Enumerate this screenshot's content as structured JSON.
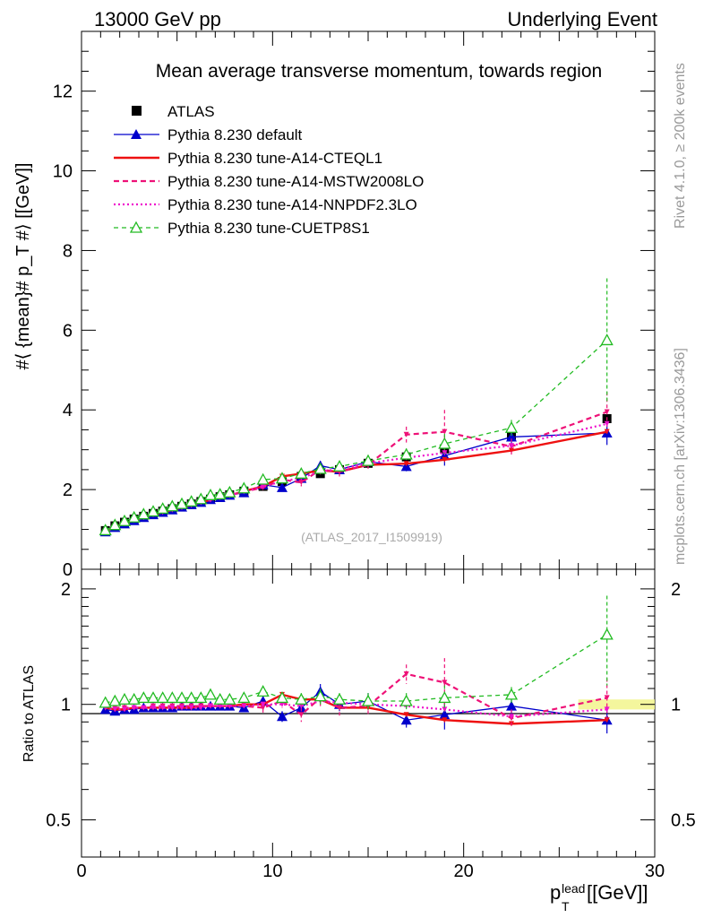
{
  "header": {
    "left_title": "13000 GeV pp",
    "right_title": "Underlying Event",
    "plot_title": "Mean average transverse momentum, towards region",
    "watermark": "(ATLAS_2017_I1509919)",
    "side_top": "Rivet 4.1.0, ≥ 200k events",
    "side_bottom": "mcplots.cern.ch [arXiv:1306.3436]"
  },
  "axes": {
    "ylabel_main": "#⟨ {mean}# p_T #⟩ [[GeV]]",
    "ylabel_ratio": "Ratio to ATLAS",
    "xlabel": "p_T^lead [[GeV]]",
    "xlabel_main": "p",
    "xlabel_sub": "T",
    "xlabel_sup": "lead",
    "xlabel_unit": " [[GeV]]"
  },
  "legend": [
    {
      "label": "ATLAS",
      "color": "#000000"
    },
    {
      "label": "Pythia 8.230 default",
      "color": "#0000cc"
    },
    {
      "label": "Pythia 8.230 tune-A14-CTEQL1",
      "color": "#ee1111"
    },
    {
      "label": "Pythia 8.230 tune-A14-MSTW2008LO",
      "color": "#ee1177"
    },
    {
      "label": "Pythia 8.230 tune-A14-NNPDF2.3LO",
      "color": "#ee11cc"
    },
    {
      "label": "Pythia 8.230 tune-CUETP8S1",
      "color": "#22bb22"
    }
  ],
  "chart_data": [
    {
      "type": "line",
      "title": "Mean average transverse momentum, towards region",
      "xlabel": "p_T^lead [GeV]",
      "ylabel": "<mean p_T> [GeV]",
      "xlim": [
        0,
        30
      ],
      "ylim": [
        0,
        13.5
      ],
      "xticks": [
        0,
        10,
        20,
        30
      ],
      "yticks": [
        0,
        2,
        4,
        6,
        8,
        10,
        12
      ],
      "x": [
        1.25,
        1.75,
        2.25,
        2.75,
        3.25,
        3.75,
        4.25,
        4.75,
        5.25,
        5.75,
        6.25,
        6.75,
        7.25,
        7.75,
        8.5,
        9.5,
        10.5,
        11.5,
        12.5,
        13.5,
        15,
        17,
        19,
        22.5,
        27.5
      ],
      "series": [
        {
          "name": "ATLAS",
          "values": [
            0.97,
            1.09,
            1.18,
            1.26,
            1.33,
            1.4,
            1.46,
            1.52,
            1.58,
            1.64,
            1.7,
            1.76,
            1.82,
            1.87,
            1.96,
            2.08,
            2.2,
            2.33,
            2.4,
            2.5,
            2.66,
            2.82,
            3.02,
            3.35,
            3.78
          ]
        },
        {
          "name": "Pythia 8.230 default",
          "values": [
            0.94,
            1.05,
            1.14,
            1.22,
            1.3,
            1.37,
            1.43,
            1.49,
            1.56,
            1.62,
            1.68,
            1.75,
            1.8,
            1.86,
            1.92,
            2.12,
            2.05,
            2.28,
            2.6,
            2.5,
            2.7,
            2.58,
            2.85,
            3.32,
            3.42
          ]
        },
        {
          "name": "Pythia 8.230 tune-A14-CTEQL1",
          "values": [
            0.95,
            1.06,
            1.15,
            1.23,
            1.3,
            1.37,
            1.43,
            1.49,
            1.55,
            1.61,
            1.68,
            1.74,
            1.8,
            1.85,
            1.96,
            2.08,
            2.33,
            2.4,
            2.48,
            2.45,
            2.62,
            2.65,
            2.75,
            2.98,
            3.45
          ]
        },
        {
          "name": "Pythia 8.230 tune-A14-MSTW2008LO",
          "values": [
            0.96,
            1.07,
            1.16,
            1.24,
            1.31,
            1.38,
            1.44,
            1.5,
            1.56,
            1.62,
            1.68,
            1.75,
            1.81,
            1.86,
            1.95,
            2.05,
            2.25,
            2.18,
            2.5,
            2.45,
            2.62,
            3.38,
            3.45,
            3.08,
            3.95
          ]
        },
        {
          "name": "Pythia 8.230 tune-A14-NNPDF2.3LO",
          "values": [
            0.95,
            1.06,
            1.15,
            1.23,
            1.3,
            1.37,
            1.43,
            1.49,
            1.55,
            1.61,
            1.67,
            1.74,
            1.8,
            1.85,
            1.95,
            2.08,
            2.2,
            2.3,
            2.45,
            2.52,
            2.66,
            2.8,
            2.92,
            3.1,
            3.65
          ]
        },
        {
          "name": "Pythia 8.230 tune-CUETP8S1",
          "values": [
            0.98,
            1.11,
            1.21,
            1.3,
            1.38,
            1.45,
            1.52,
            1.58,
            1.64,
            1.7,
            1.76,
            1.86,
            1.88,
            1.93,
            2.03,
            2.25,
            2.28,
            2.4,
            2.52,
            2.58,
            2.72,
            2.88,
            3.15,
            3.55,
            5.75
          ]
        }
      ],
      "errors": {
        "Pythia 8.230 default": [
          0.02,
          0.02,
          0.02,
          0.02,
          0.02,
          0.02,
          0.02,
          0.02,
          0.02,
          0.02,
          0.02,
          0.03,
          0.03,
          0.03,
          0.05,
          0.08,
          0.08,
          0.1,
          0.12,
          0.1,
          0.15,
          0.12,
          0.25,
          0.2,
          0.3
        ],
        "Pythia 8.230 tune-A14-MSTW2008LO": [
          0.02,
          0.02,
          0.02,
          0.02,
          0.02,
          0.02,
          0.02,
          0.02,
          0.02,
          0.02,
          0.02,
          0.03,
          0.03,
          0.03,
          0.05,
          0.08,
          0.1,
          0.1,
          0.12,
          0.12,
          0.15,
          0.2,
          0.55,
          0.2,
          0.5
        ],
        "Pythia 8.230 tune-CUETP8S1": [
          0.02,
          0.02,
          0.02,
          0.02,
          0.02,
          0.02,
          0.02,
          0.02,
          0.02,
          0.02,
          0.02,
          0.03,
          0.03,
          0.03,
          0.05,
          0.08,
          0.08,
          0.1,
          0.12,
          0.1,
          0.15,
          0.15,
          0.25,
          0.2,
          1.55
        ]
      }
    },
    {
      "type": "line",
      "ylabel": "Ratio to ATLAS",
      "xlim": [
        0,
        30
      ],
      "ylim": [
        0.4,
        2.25
      ],
      "yscale": "log",
      "yticks": [
        0.5,
        1,
        2
      ],
      "x": [
        1.25,
        1.75,
        2.25,
        2.75,
        3.25,
        3.75,
        4.25,
        4.75,
        5.25,
        5.75,
        6.25,
        6.75,
        7.25,
        7.75,
        8.5,
        9.5,
        10.5,
        11.5,
        12.5,
        13.5,
        15,
        17,
        19,
        22.5,
        27.5
      ],
      "series": [
        {
          "name": "Pythia 8.230 default",
          "values": [
            0.97,
            0.96,
            0.97,
            0.97,
            0.98,
            0.98,
            0.98,
            0.98,
            0.99,
            0.99,
            0.99,
            0.99,
            0.99,
            0.99,
            0.98,
            1.02,
            0.93,
            0.98,
            1.08,
            1.0,
            1.02,
            0.91,
            0.94,
            0.99,
            0.91
          ]
        },
        {
          "name": "Pythia 8.230 tune-A14-CTEQL1",
          "values": [
            0.98,
            0.97,
            0.97,
            0.98,
            0.98,
            0.98,
            0.98,
            0.98,
            0.98,
            0.98,
            0.99,
            0.99,
            0.99,
            0.99,
            1.0,
            1.0,
            1.06,
            1.03,
            1.03,
            0.98,
            0.98,
            0.94,
            0.91,
            0.89,
            0.91
          ]
        },
        {
          "name": "Pythia 8.230 tune-A14-MSTW2008LO",
          "values": [
            0.99,
            0.98,
            0.98,
            0.98,
            0.98,
            0.99,
            0.99,
            0.99,
            0.99,
            0.99,
            0.99,
            0.99,
            0.99,
            0.99,
            0.99,
            0.98,
            1.02,
            0.94,
            1.04,
            0.98,
            0.99,
            1.2,
            1.14,
            0.92,
            1.04
          ]
        },
        {
          "name": "Pythia 8.230 tune-A14-NNPDF2.3LO",
          "values": [
            0.98,
            0.97,
            0.97,
            0.98,
            0.98,
            0.98,
            0.98,
            0.98,
            0.98,
            0.98,
            0.98,
            0.99,
            0.99,
            0.99,
            0.99,
            1.0,
            1.0,
            0.99,
            1.02,
            1.01,
            1.0,
            0.99,
            0.97,
            0.93,
            0.97
          ]
        },
        {
          "name": "Pythia 8.230 tune-CUETP8S1",
          "values": [
            1.01,
            1.02,
            1.03,
            1.03,
            1.04,
            1.04,
            1.04,
            1.04,
            1.04,
            1.04,
            1.04,
            1.06,
            1.03,
            1.03,
            1.04,
            1.08,
            1.04,
            1.03,
            1.05,
            1.03,
            1.02,
            1.02,
            1.04,
            1.06,
            1.52
          ]
        }
      ],
      "errors": {
        "Pythia 8.230 default": [
          0.01,
          0.01,
          0.01,
          0.01,
          0.01,
          0.01,
          0.01,
          0.01,
          0.01,
          0.01,
          0.01,
          0.01,
          0.01,
          0.01,
          0.02,
          0.03,
          0.03,
          0.04,
          0.05,
          0.04,
          0.05,
          0.04,
          0.08,
          0.05,
          0.07
        ],
        "Pythia 8.230 tune-A14-MSTW2008LO": [
          0.01,
          0.01,
          0.01,
          0.01,
          0.01,
          0.01,
          0.01,
          0.01,
          0.01,
          0.01,
          0.01,
          0.01,
          0.01,
          0.01,
          0.02,
          0.03,
          0.04,
          0.04,
          0.05,
          0.05,
          0.05,
          0.07,
          0.18,
          0.05,
          0.13
        ],
        "Pythia 8.230 tune-CUETP8S1": [
          0.01,
          0.01,
          0.01,
          0.01,
          0.01,
          0.01,
          0.01,
          0.01,
          0.01,
          0.01,
          0.01,
          0.01,
          0.01,
          0.01,
          0.02,
          0.03,
          0.03,
          0.04,
          0.05,
          0.04,
          0.05,
          0.05,
          0.08,
          0.05,
          0.4
        ]
      },
      "ratio_band": {
        "from": 26,
        "to": 30,
        "half_width": 0.03
      }
    }
  ]
}
